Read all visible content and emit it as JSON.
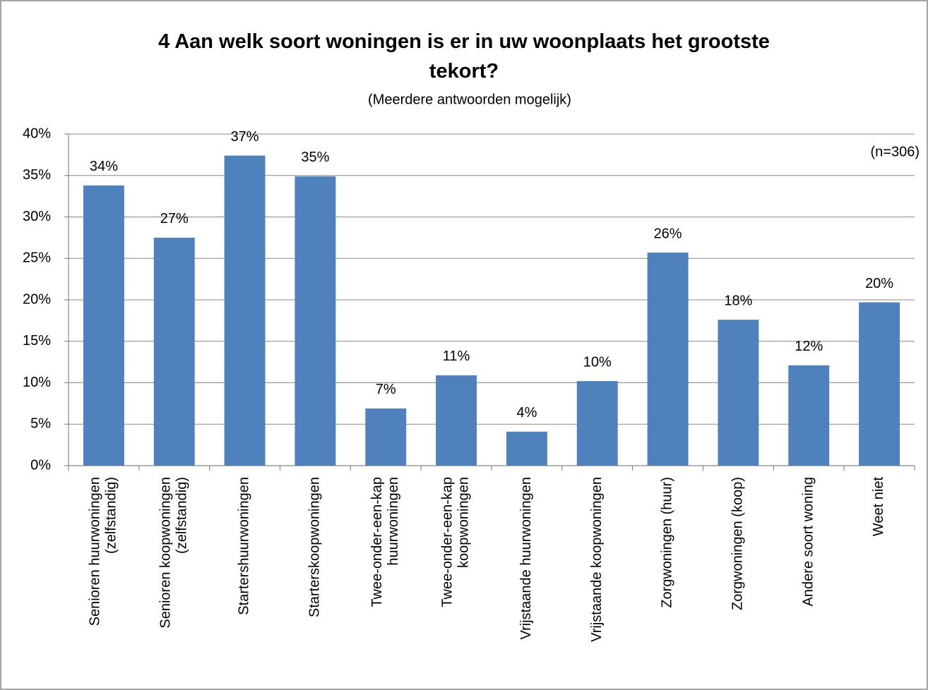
{
  "chart_data": {
    "type": "bar",
    "title": "4 Aan welk soort woningen is er in uw woonplaats het grootste\ntekort?",
    "subtitle": "(Meerdere antwoorden mogelijk)",
    "annotation": "(n=306)",
    "categories": [
      "Senioren huurwoningen\n(zelfstandig)",
      "Senioren koopwoningen\n(zelfstandig)",
      "Startershuurwoningen",
      "Starterskoopwoningen",
      "Twee-onder-een-kap\nhuurwoningen",
      "Twee-onder-een-kap\nkoopwoningen",
      "Vrijstaande huurwoningen",
      "Vrijstaande koopwoningen",
      "Zorgwoningen (huur)",
      "Zorgwoningen (koop)",
      "Andere soort woning",
      "Weet niet"
    ],
    "values": [
      33.8,
      27.5,
      37.4,
      34.9,
      6.9,
      10.9,
      4.1,
      10.2,
      25.7,
      17.6,
      12.1,
      19.7
    ],
    "value_labels": [
      "34%",
      "27%",
      "37%",
      "35%",
      "7%",
      "11%",
      "4%",
      "10%",
      "26%",
      "18%",
      "12%",
      "20%"
    ],
    "color": "#4f81bd",
    "ylim": [
      0,
      40
    ],
    "yticks": [
      {
        "value": 0,
        "label": "0%"
      },
      {
        "value": 5,
        "label": "5%"
      },
      {
        "value": 10,
        "label": "10%"
      },
      {
        "value": 15,
        "label": "15%"
      },
      {
        "value": 20,
        "label": "20%"
      },
      {
        "value": 25,
        "label": "25%"
      },
      {
        "value": 30,
        "label": "30%"
      },
      {
        "value": 35,
        "label": "35%"
      },
      {
        "value": 40,
        "label": "40%"
      }
    ],
    "grid": true
  }
}
